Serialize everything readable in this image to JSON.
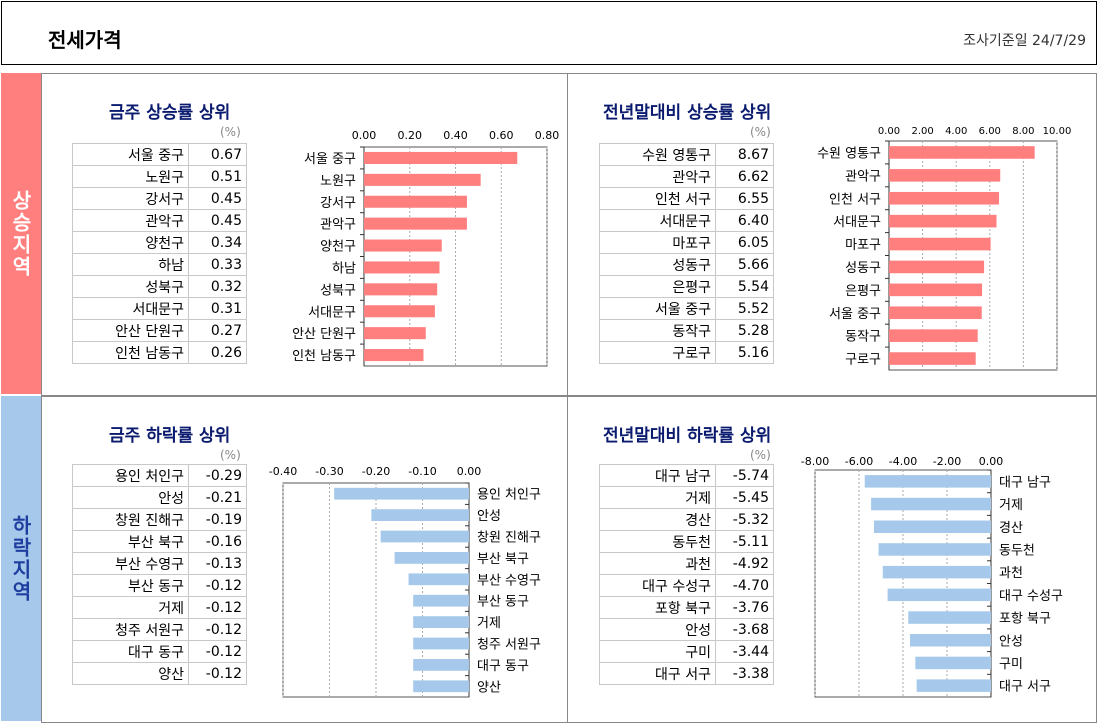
{
  "header": {
    "title": "전세가격",
    "date": "조사기준일 24/7/29"
  },
  "sidebar": {
    "rise": "상승지역",
    "fall": "하락지역"
  },
  "unit": "(%)",
  "chart_data": [
    {
      "type": "bar",
      "title": "금주 상승률 상위",
      "categories": [
        "서울 중구",
        "노원구",
        "강서구",
        "관악구",
        "양천구",
        "하남",
        "성북구",
        "서대문구",
        "안산 단원구",
        "인천 남동구"
      ],
      "values": [
        0.67,
        0.51,
        0.45,
        0.45,
        0.34,
        0.33,
        0.32,
        0.31,
        0.27,
        0.26
      ],
      "value_labels": [
        "0.67",
        "0.51",
        "0.45",
        "0.45",
        "0.34",
        "0.33",
        "0.32",
        "0.31",
        "0.27",
        "0.26"
      ],
      "xlim": [
        0,
        0.8
      ],
      "ticks": [
        0,
        0.2,
        0.4,
        0.6,
        0.8
      ],
      "tick_labels": [
        "0.00",
        "0.20",
        "0.40",
        "0.60",
        "0.80"
      ],
      "color": "#ff7f7f",
      "orientation": "horizontal"
    },
    {
      "type": "bar",
      "title": "전년말대비 상승률 상위",
      "categories": [
        "수원 영통구",
        "관악구",
        "인천 서구",
        "서대문구",
        "마포구",
        "성동구",
        "은평구",
        "서울 중구",
        "동작구",
        "구로구"
      ],
      "values": [
        8.67,
        6.62,
        6.55,
        6.4,
        6.05,
        5.66,
        5.54,
        5.52,
        5.28,
        5.16
      ],
      "value_labels": [
        "8.67",
        "6.62",
        "6.55",
        "6.40",
        "6.05",
        "5.66",
        "5.54",
        "5.52",
        "5.28",
        "5.16"
      ],
      "xlim": [
        0,
        10
      ],
      "ticks": [
        0,
        2,
        4,
        6,
        8,
        10
      ],
      "tick_labels": [
        "0.00",
        "2.00",
        "4.00",
        "6.00",
        "8.00",
        "10.00"
      ],
      "color": "#ff7f7f",
      "orientation": "horizontal"
    },
    {
      "type": "bar",
      "title": "금주 하락률 상위",
      "categories": [
        "용인 처인구",
        "안성",
        "창원 진해구",
        "부산 북구",
        "부산 수영구",
        "부산 동구",
        "거제",
        "청주 서원구",
        "대구 동구",
        "양산"
      ],
      "values": [
        -0.29,
        -0.21,
        -0.19,
        -0.16,
        -0.13,
        -0.12,
        -0.12,
        -0.12,
        -0.12,
        -0.12
      ],
      "value_labels": [
        "-0.29",
        "-0.21",
        "-0.19",
        "-0.16",
        "-0.13",
        "-0.12",
        "-0.12",
        "-0.12",
        "-0.12",
        "-0.12"
      ],
      "xlim": [
        -0.4,
        0
      ],
      "ticks": [
        -0.4,
        -0.3,
        -0.2,
        -0.1,
        0
      ],
      "tick_labels": [
        "-0.40",
        "-0.30",
        "-0.20",
        "-0.10",
        "0.00"
      ],
      "color": "#a6c8ea",
      "orientation": "horizontal"
    },
    {
      "type": "bar",
      "title": "전년말대비 하락률 상위",
      "categories": [
        "대구 남구",
        "거제",
        "경산",
        "동두천",
        "과천",
        "대구 수성구",
        "포항 북구",
        "안성",
        "구미",
        "대구 서구"
      ],
      "values": [
        -5.74,
        -5.45,
        -5.32,
        -5.11,
        -4.92,
        -4.7,
        -3.76,
        -3.68,
        -3.44,
        -3.38
      ],
      "value_labels": [
        "-5.74",
        "-5.45",
        "-5.32",
        "-5.11",
        "-4.92",
        "-4.70",
        "-3.76",
        "-3.68",
        "-3.44",
        "-3.38"
      ],
      "xlim": [
        -8,
        0
      ],
      "ticks": [
        -8,
        -6,
        -4,
        -2,
        0
      ],
      "tick_labels": [
        "-8.00",
        "-6.00",
        "-4.00",
        "-2.00",
        "0.00"
      ],
      "color": "#a6c8ea",
      "orientation": "horizontal"
    }
  ]
}
